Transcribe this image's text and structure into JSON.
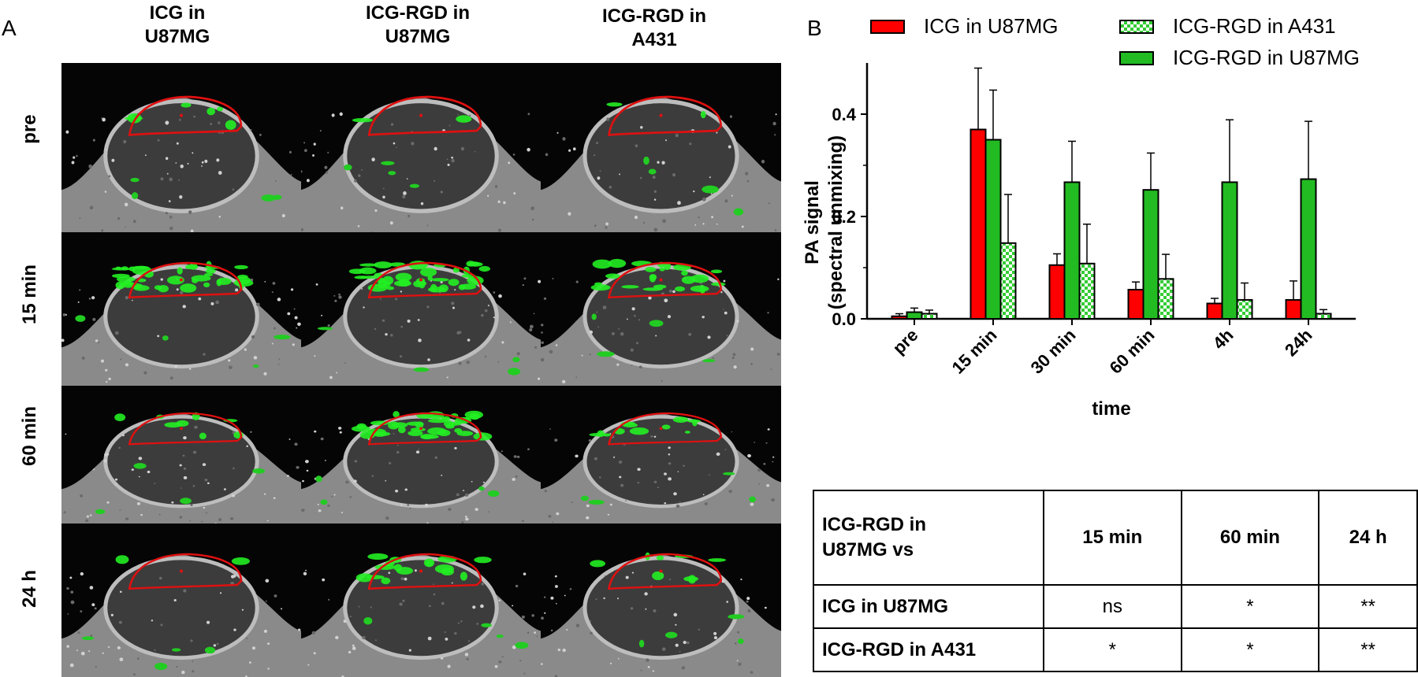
{
  "panel_a": {
    "letter": "A",
    "columns": [
      "ICG in\nU87MG",
      "ICG-RGD  in\nU87MG",
      "ICG-RGD  in\nA431"
    ],
    "rows": [
      "pre",
      "15 min",
      "60 min",
      "24 h"
    ]
  },
  "panel_b": {
    "letter": "B"
  },
  "legend": [
    {
      "label": "ICG in U87MG",
      "color": "#ff0000",
      "pattern": "solid"
    },
    {
      "label": "ICG-RGD in A431",
      "color": "#33cc33",
      "pattern": "checker"
    },
    {
      "label": "ICG-RGD in U87MG",
      "color": "#22bb22",
      "pattern": "solid"
    }
  ],
  "chart_data": {
    "type": "bar",
    "title": "",
    "xlabel": "time",
    "ylabel": "PA signal\n(spectral unmixing)",
    "categories": [
      "pre",
      "15 min",
      "30 min",
      "60 min",
      "4h",
      "24h"
    ],
    "ylim": [
      0,
      0.5
    ],
    "yticks": [
      "0.0",
      "0.2",
      "0.4"
    ],
    "series": [
      {
        "name": "ICG in U87MG",
        "color": "#ff0000",
        "pattern": "solid",
        "values": [
          0.005,
          0.37,
          0.105,
          0.057,
          0.03,
          0.037
        ],
        "errors": [
          0.005,
          0.12,
          0.022,
          0.015,
          0.01,
          0.037
        ]
      },
      {
        "name": "ICG-RGD in U87MG",
        "color": "#22bb22",
        "pattern": "solid",
        "values": [
          0.013,
          0.35,
          0.267,
          0.252,
          0.267,
          0.273
        ],
        "errors": [
          0.008,
          0.097,
          0.08,
          0.072,
          0.122,
          0.113
        ]
      },
      {
        "name": "ICG-RGD in A431",
        "color": "#33cc33",
        "pattern": "checker",
        "values": [
          0.01,
          0.148,
          0.108,
          0.078,
          0.037,
          0.01
        ],
        "errors": [
          0.007,
          0.095,
          0.077,
          0.048,
          0.033,
          0.008
        ]
      }
    ]
  },
  "table": {
    "header": [
      "ICG-RGD in\nU87MG vs",
      "15 min",
      "60 min",
      "24 h"
    ],
    "rows": [
      [
        "ICG in U87MG",
        "ns",
        "*",
        "**"
      ],
      [
        "ICG-RGD in A431",
        "*",
        "*",
        "**"
      ]
    ]
  }
}
